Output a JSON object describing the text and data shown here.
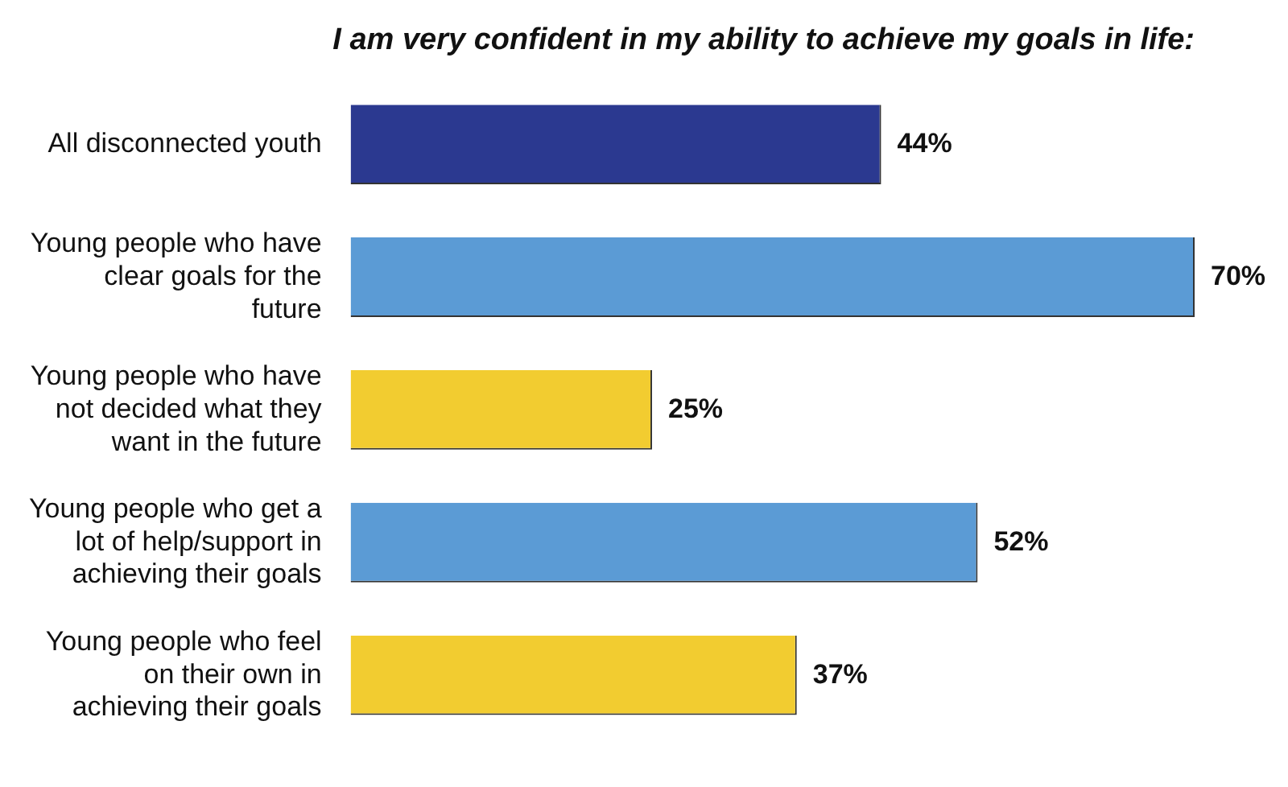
{
  "chart_data": {
    "type": "bar",
    "orientation": "horizontal",
    "title": "I am very confident in my ability to achieve my goals in life:",
    "categories": [
      "All disconnected youth",
      "Young people who have clear goals for the future",
      "Young people who have not decided what they want in the future",
      "Young people who get a lot of help/support in achieving their goals",
      "Young people who feel on their own in achieving their goals"
    ],
    "values": [
      44,
      70,
      25,
      52,
      37
    ],
    "colors": [
      "#2b3990",
      "#5b9bd5",
      "#f2cc30",
      "#5b9bd5",
      "#f2cc30"
    ],
    "value_labels": [
      "44%",
      "70%",
      "25%",
      "52%",
      "37%"
    ],
    "grid": false,
    "legend": false
  }
}
